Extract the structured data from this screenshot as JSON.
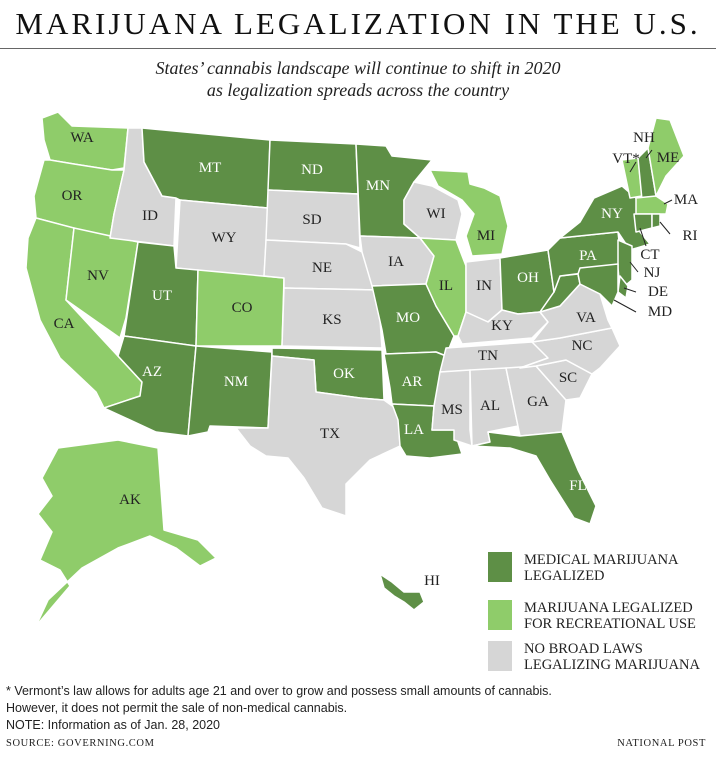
{
  "header": {
    "title": "MARIJUANA LEGALIZATION IN THE U.S.",
    "subtitle_line1": "States’ cannabis landscape will continue to shift in 2020",
    "subtitle_line2": "as legalization spreads across the country"
  },
  "colors": {
    "medical": "#5e8f46",
    "recreational": "#8fcc6a",
    "none": "#d6d6d6",
    "border": "#ffffff"
  },
  "legend": [
    {
      "key": "medical",
      "line1": "MEDICAL MARIJUANA",
      "line2": "LEGALIZED"
    },
    {
      "key": "recreational",
      "line1": "MARIJUANA LEGALIZED",
      "line2": "FOR RECREATIONAL USE"
    },
    {
      "key": "none",
      "line1": "NO BROAD LAWS",
      "line2": "LEGALIZING MARIJUANA"
    }
  ],
  "states": {
    "WA": "recreational",
    "OR": "recreational",
    "CA": "recreational",
    "NV": "recreational",
    "ID": "none",
    "MT": "medical",
    "WY": "none",
    "UT": "medical",
    "CO": "recreational",
    "AZ": "medical",
    "NM": "medical",
    "ND": "medical",
    "SD": "none",
    "NE": "none",
    "KS": "none",
    "OK": "medical",
    "TX": "none",
    "MN": "medical",
    "IA": "none",
    "MO": "medical",
    "AR": "medical",
    "LA": "medical",
    "WI": "none",
    "IL": "recreational",
    "MI": "recreational",
    "IN": "none",
    "OH": "medical",
    "KY": "none",
    "TN": "none",
    "MS": "none",
    "AL": "none",
    "GA": "none",
    "FL": "medical",
    "SC": "none",
    "NC": "none",
    "VA": "none",
    "WV": "medical",
    "PA": "medical",
    "NY": "medical",
    "VT": "recreational",
    "NH": "medical",
    "ME": "recreational",
    "MA": "recreational",
    "RI": "medical",
    "CT": "medical",
    "NJ": "medical",
    "DE": "medical",
    "MD": "medical",
    "AK": "recreational",
    "HI": "medical"
  },
  "labels": {
    "WA": "WA",
    "OR": "OR",
    "CA": "CA",
    "NV": "NV",
    "ID": "ID",
    "MT": "MT",
    "WY": "WY",
    "UT": "UT",
    "CO": "CO",
    "AZ": "AZ",
    "NM": "NM",
    "ND": "ND",
    "SD": "SD",
    "NE": "NE",
    "KS": "KS",
    "OK": "OK",
    "TX": "TX",
    "MN": "MN",
    "IA": "IA",
    "MO": "MO",
    "AR": "AR",
    "LA": "LA",
    "WI": "WI",
    "IL": "IL",
    "MI": "MI",
    "IN": "IN",
    "OH": "OH",
    "KY": "KY",
    "TN": "TN",
    "MS": "MS",
    "AL": "AL",
    "GA": "GA",
    "FL": "FL",
    "SC": "SC",
    "NC": "NC",
    "VA": "VA",
    "WV": "",
    "PA": "PA",
    "NY": "NY",
    "VT": "VT*",
    "NH": "NH",
    "ME": "ME",
    "MA": "MA",
    "RI": "RI",
    "CT": "CT",
    "NJ": "NJ",
    "DE": "DE",
    "MD": "MD",
    "AK": "AK",
    "HI": "HI"
  },
  "footnotes": {
    "vermont_line1": "* Vermont’s law allows for adults age 21 and over to grow and possess small amounts of cannabis.",
    "vermont_line2": "However, it does not permit the sale of non-medical cannabis.",
    "note": "NOTE: Information as of Jan. 28, 2020",
    "source": "SOURCE: GOVERNING.COM",
    "credit": "NATIONAL POST"
  }
}
